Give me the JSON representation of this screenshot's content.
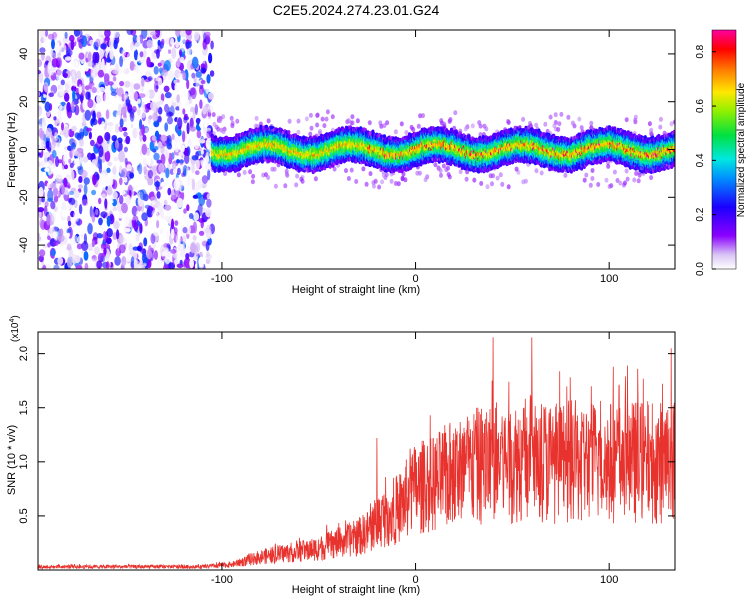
{
  "title": "C2E5.2024.274.23.01.G24",
  "colors": {
    "signal": "#e8322d",
    "axis": "#000000",
    "background": "#ffffff"
  },
  "chart_data": [
    {
      "type": "heatmap",
      "name": "spectrogram",
      "xlabel": "Height of straight line (km)",
      "ylabel": "Frequency (Hz)",
      "xlim": [
        -195,
        134
      ],
      "ylim": [
        -50,
        50
      ],
      "xticks": [
        -100,
        0,
        100
      ],
      "xticklabels": [
        "-100",
        "0",
        "100"
      ],
      "yticks": [
        -40,
        -20,
        0,
        20,
        40
      ],
      "yticklabels": [
        "-40",
        "-20",
        "0",
        "20",
        "40"
      ],
      "colorbar": {
        "label": "Normalized spectral amplitude",
        "range": [
          0.0,
          0.88
        ],
        "ticks": [
          0.0,
          0.2,
          0.4,
          0.6,
          0.8
        ],
        "ticklabels": [
          "0.0",
          "0.2",
          "0.4",
          "0.6",
          "0.8"
        ],
        "colormap": "rainbow (white-purple-blue-cyan-green-yellow-red-magenta)"
      },
      "features": {
        "noise_region_x": [
          -195,
          -105
        ],
        "signal_band_center_hz": 0,
        "signal_band_halfwidth_hz": 6,
        "max_amplitude_region_x": [
          -25,
          134
        ]
      }
    },
    {
      "type": "line",
      "name": "snr",
      "xlabel": "Height of straight line (km)",
      "ylabel": "SNR (10 * v/v)",
      "multiplier_label": "(x10",
      "multiplier_exponent": "4",
      "multiplier_close": ")",
      "xlim": [
        -195,
        134
      ],
      "ylim": [
        0,
        2.2
      ],
      "xticks": [
        -100,
        0,
        100
      ],
      "xticklabels": [
        "-100",
        "0",
        "100"
      ],
      "yticks": [
        0.5,
        1.0,
        1.5,
        2.0
      ],
      "yticklabels": [
        "0.5",
        "1.0",
        "1.5",
        "2.0"
      ],
      "series": [
        {
          "color": "#e8322d",
          "x": [
            -195,
            -150,
            -110,
            -95,
            -80,
            -70,
            -60,
            -50,
            -40,
            -30,
            -25,
            -20,
            -15,
            -10,
            -5,
            0,
            10,
            20,
            30,
            40,
            50,
            60,
            70,
            80,
            90,
            100,
            110,
            120,
            130,
            134
          ],
          "y": [
            0.03,
            0.03,
            0.03,
            0.05,
            0.12,
            0.15,
            0.17,
            0.2,
            0.25,
            0.3,
            0.35,
            0.45,
            0.5,
            0.55,
            0.65,
            0.75,
            0.8,
            0.9,
            0.95,
            1.0,
            1.0,
            1.05,
            1.0,
            1.0,
            1.0,
            1.0,
            1.0,
            1.0,
            1.0,
            1.0
          ],
          "peaks": [
            {
              "x": 40,
              "y": 2.15
            },
            {
              "x": 60,
              "y": 2.15
            },
            {
              "x": 132,
              "y": 2.05
            },
            {
              "x": -20,
              "y": 1.22
            }
          ]
        }
      ]
    }
  ]
}
